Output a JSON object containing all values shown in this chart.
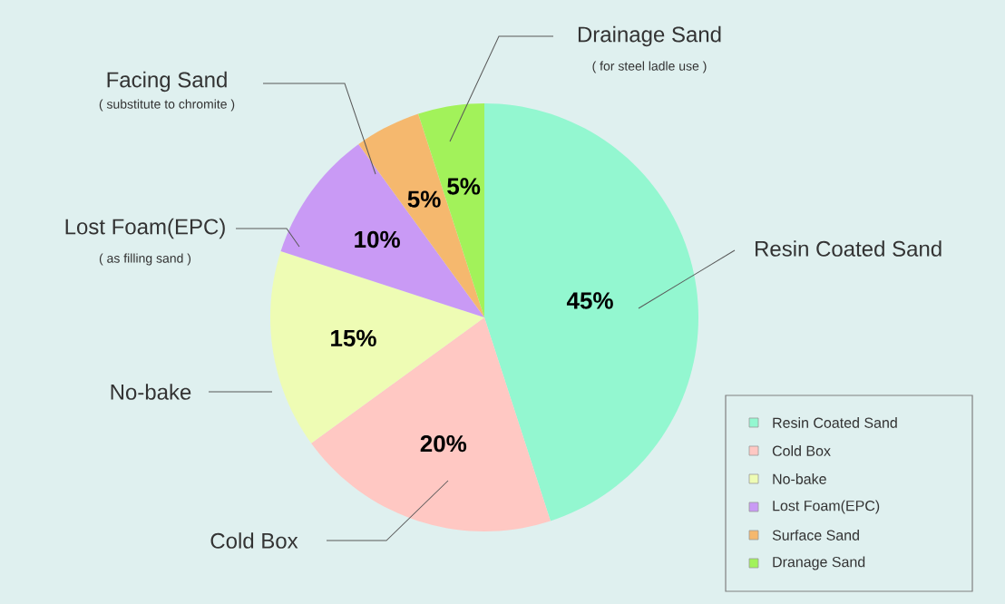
{
  "chart_data": {
    "type": "pie",
    "categories": [
      "Resin Coated Sand",
      "Cold Box",
      "No-bake",
      "Lost Foam(EPC)",
      "Surface Sand",
      "Dranage  Sand"
    ],
    "values": [
      45,
      20,
      15,
      10,
      5,
      5
    ],
    "value_labels": [
      "45%",
      "20%",
      "15%",
      "10%",
      "5%",
      "5%"
    ],
    "colors": [
      "#93f7d0",
      "#ffc8c3",
      "#eefcb4",
      "#c99af5",
      "#f5b86e",
      "#a2f25a"
    ],
    "legend": "bottom right",
    "annotations": [
      "Resin Coated Sand",
      "Cold Box",
      "No-bake",
      "Lost Foam(EPC)",
      "( as filling sand )",
      "Facing Sand",
      "( substitute to chromite )",
      "Drainage  Sand",
      "( for steel ladle use )"
    ]
  }
}
